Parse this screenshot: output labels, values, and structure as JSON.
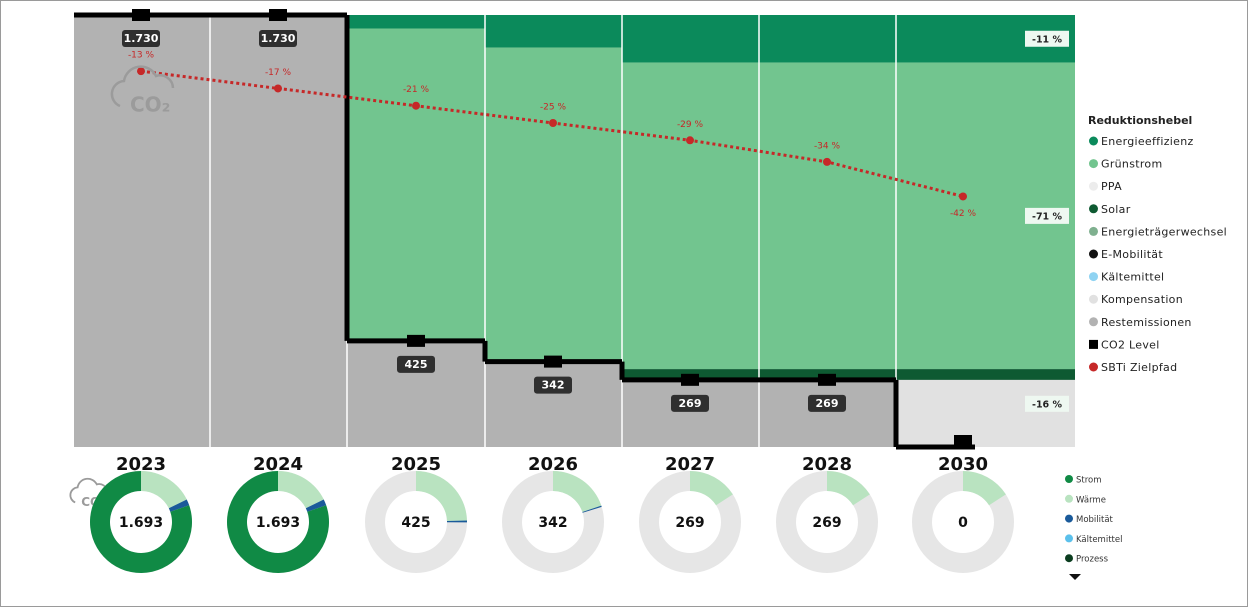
{
  "icon": {
    "label": "CO₂"
  },
  "chart_data": [
    {
      "type": "stacked-step",
      "categories": [
        "2023",
        "2024",
        "2025",
        "2026",
        "2027",
        "2028",
        "2030"
      ],
      "legend_title": "Reduktionshebel",
      "series": [
        {
          "name": "Energieeffizienz",
          "color": "#0b8a5b",
          "values": [
            0,
            0,
            54,
            130,
            190,
            190,
            190
          ]
        },
        {
          "name": "Grünstrom",
          "color": "#72c58f",
          "values": [
            0,
            0,
            1251,
            1258,
            1228,
            1228,
            1228
          ]
        },
        {
          "name": "PPA",
          "color": "#ececec",
          "values": [
            0,
            0,
            0,
            0,
            0,
            0,
            0
          ]
        },
        {
          "name": "Solar",
          "color": "#0e5a32",
          "values": [
            0,
            0,
            0,
            0,
            43,
            43,
            43
          ]
        },
        {
          "name": "Energieträgerwechsel",
          "color": "#7fb08f",
          "values": [
            0,
            0,
            0,
            0,
            0,
            0,
            0
          ]
        },
        {
          "name": "E-Mobilität",
          "color": "#111111",
          "values": [
            0,
            0,
            0,
            0,
            0,
            0,
            0
          ]
        },
        {
          "name": "Kältemittel",
          "color": "#8fd3f2",
          "values": [
            0,
            0,
            0,
            0,
            0,
            0,
            0
          ]
        },
        {
          "name": "Kompensation",
          "color": "#e1e1e1",
          "values": [
            0,
            0,
            0,
            0,
            0,
            0,
            269
          ]
        },
        {
          "name": "Restemissionen",
          "color": "#b2b2b2",
          "values": [
            1730,
            1730,
            425,
            342,
            269,
            269,
            0
          ]
        },
        {
          "name": "CO2 Level",
          "type": "step",
          "color": "#000000",
          "values": [
            1730,
            1730,
            425,
            342,
            269,
            269,
            0
          ],
          "value_labels": [
            "1.730",
            "1.730",
            "425",
            "342",
            "269",
            "269",
            null
          ]
        },
        {
          "name": "SBTi Zielpfad",
          "type": "line",
          "color": "#c62828",
          "values": [
            -13,
            -17,
            -21,
            -25,
            -29,
            -34,
            -42
          ],
          "value_labels": [
            "-13 %",
            "-17 %",
            "-21 %",
            "-25 %",
            "-29 %",
            "-34 %",
            "-42 %"
          ]
        }
      ],
      "annotations": [
        {
          "value": -11,
          "label": "-11 %"
        },
        {
          "value": -71,
          "label": "-71 %"
        },
        {
          "value": -16,
          "label": "-16 %"
        }
      ]
    },
    {
      "type": "donut",
      "series": [
        {
          "name": "Strom",
          "color": "#108a45",
          "values": [
            1360,
            1360,
            0,
            0,
            0,
            0,
            0
          ]
        },
        {
          "name": "Wärme",
          "color": "#b9e3c0",
          "values": [
            300,
            300,
            415,
            335,
            269,
            269,
            269
          ]
        },
        {
          "name": "Mobilität",
          "color": "#1a5a9a",
          "values": [
            33,
            33,
            10,
            7,
            0,
            0,
            0
          ]
        },
        {
          "name": "Kältemittel",
          "color": "#5bc0eb",
          "values": [
            0,
            0,
            0,
            0,
            0,
            0,
            0
          ]
        },
        {
          "name": "Prozess",
          "color": "#0b3d1f",
          "values": [
            0,
            0,
            0,
            0,
            0,
            0,
            0
          ]
        }
      ],
      "totals": [
        {
          "value": 1693,
          "label": "1.693"
        },
        {
          "value": 1693,
          "label": "1.693"
        },
        {
          "value": 425,
          "label": "425"
        },
        {
          "value": 342,
          "label": "342"
        },
        {
          "value": 269,
          "label": "269"
        },
        {
          "value": 269,
          "label": "269"
        },
        {
          "value": 0,
          "label": "0"
        }
      ]
    }
  ]
}
